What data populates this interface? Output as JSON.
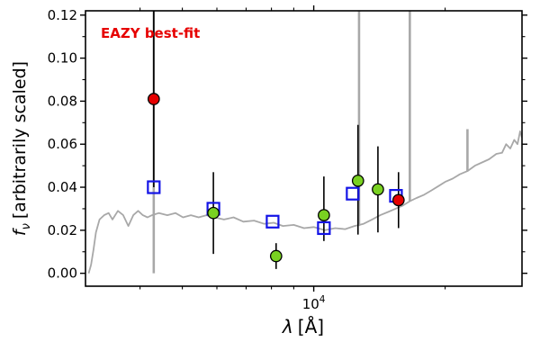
{
  "figure": {
    "annotation": "EAZY best-fit",
    "xlabel_symbol": "λ",
    "xlabel_unit": "[Å]",
    "ylabel_symbol": "f",
    "ylabel_sub": "ν",
    "ylabel_rest": "[arbitrarily scaled]"
  },
  "chart_data": {
    "type": "scatter",
    "title": "",
    "annotation": "EAZY best-fit",
    "xlabel": "λ [Å]",
    "ylabel": "f_ν [arbitrarily scaled]",
    "x_scale": "log",
    "xlim": [
      3000,
      30000
    ],
    "ylim": [
      -0.006,
      0.122
    ],
    "y_ticks": [
      0.0,
      0.02,
      0.04,
      0.06,
      0.08,
      0.1,
      0.12
    ],
    "y_tick_labels": [
      "0.00",
      "0.02",
      "0.04",
      "0.06",
      "0.08",
      "0.10",
      "0.12"
    ],
    "y_minor_ticks": [
      0.01,
      0.03,
      0.05,
      0.07,
      0.09,
      0.11
    ],
    "x_major_ticks": [
      10000
    ],
    "x_major_label": {
      "base": "10",
      "exp": "4"
    },
    "x_minor_ticks": [
      4000,
      5000,
      6000,
      7000,
      8000,
      9000,
      20000
    ],
    "grid": false,
    "legend": "none",
    "colors": {
      "spectrum": "#a8a8a8",
      "model_square": "#1414e6",
      "observed_red": "#e60000",
      "observed_green": "#79d121",
      "errorbar": "#000000",
      "annotation": "#e60000",
      "axes": "#000000"
    },
    "series": [
      {
        "name": "EAZY model photometry",
        "slug": "model-photometry-point",
        "marker": "open-square",
        "color": "#1414e6",
        "points": [
          [
            4300,
            0.04
          ],
          [
            5890,
            0.03
          ],
          [
            8050,
            0.024
          ],
          [
            10550,
            0.021
          ],
          [
            12280,
            0.037
          ],
          [
            15430,
            0.036
          ]
        ]
      },
      {
        "name": "observed photometry (red)",
        "slug": "observed-point-red",
        "marker": "circle",
        "color": "#e60000",
        "points": [
          [
            4300,
            0.081,
            0.041,
            0.045
          ],
          [
            15640,
            0.034,
            0.013,
            0.013
          ]
        ]
      },
      {
        "name": "observed photometry (green)",
        "slug": "observed-point-green",
        "marker": "circle",
        "color": "#79d121",
        "points": [
          [
            5890,
            0.028,
            0.019,
            0.019
          ],
          [
            8200,
            0.008,
            0.006,
            0.006
          ],
          [
            10550,
            0.027,
            0.012,
            0.018
          ],
          [
            12630,
            0.043,
            0.025,
            0.026
          ],
          [
            14030,
            0.039,
            0.02,
            0.02
          ]
        ]
      }
    ],
    "spectrum": {
      "name": "best-fit model spectrum",
      "color": "#a8a8a8",
      "points": [
        [
          3050,
          0.0
        ],
        [
          3090,
          0.004
        ],
        [
          3130,
          0.011
        ],
        [
          3170,
          0.019
        ],
        [
          3230,
          0.025
        ],
        [
          3310,
          0.027
        ],
        [
          3390,
          0.028
        ],
        [
          3460,
          0.025
        ],
        [
          3560,
          0.029
        ],
        [
          3660,
          0.027
        ],
        [
          3760,
          0.022
        ],
        [
          3860,
          0.027
        ],
        [
          3960,
          0.029
        ],
        [
          4060,
          0.027
        ],
        [
          4160,
          0.026
        ],
        [
          4260,
          0.027
        ],
        [
          4420,
          0.028
        ],
        [
          4620,
          0.027
        ],
        [
          4820,
          0.028
        ],
        [
          5020,
          0.026
        ],
        [
          5230,
          0.027
        ],
        [
          5450,
          0.026
        ],
        [
          5680,
          0.027
        ],
        [
          5920,
          0.026
        ],
        [
          6230,
          0.025
        ],
        [
          6550,
          0.026
        ],
        [
          6900,
          0.024
        ],
        [
          7300,
          0.0245
        ],
        [
          7700,
          0.023
        ],
        [
          8100,
          0.0235
        ],
        [
          8500,
          0.022
        ],
        [
          9000,
          0.0225
        ],
        [
          9500,
          0.021
        ],
        [
          10000,
          0.0215
        ],
        [
          10600,
          0.02
        ],
        [
          11200,
          0.021
        ],
        [
          11800,
          0.0205
        ],
        [
          12400,
          0.022
        ],
        [
          13000,
          0.023
        ],
        [
          13600,
          0.025
        ],
        [
          14200,
          0.027
        ],
        [
          14800,
          0.0285
        ],
        [
          15400,
          0.03
        ],
        [
          16000,
          0.0315
        ],
        [
          16600,
          0.0335
        ],
        [
          17200,
          0.035
        ],
        [
          17900,
          0.0365
        ],
        [
          18600,
          0.0385
        ],
        [
          19300,
          0.0405
        ],
        [
          20000,
          0.0425
        ],
        [
          20800,
          0.044
        ],
        [
          21600,
          0.046
        ],
        [
          22500,
          0.0475
        ],
        [
          23400,
          0.05
        ],
        [
          24300,
          0.0515
        ],
        [
          25200,
          0.053
        ],
        [
          26200,
          0.0555
        ],
        [
          27000,
          0.056
        ],
        [
          27600,
          0.06
        ],
        [
          28200,
          0.058
        ],
        [
          28800,
          0.062
        ],
        [
          29300,
          0.06
        ],
        [
          29700,
          0.066
        ],
        [
          30000,
          0.063
        ]
      ],
      "emission_lines": [
        [
          4300,
          0.0,
          0.135
        ],
        [
          12700,
          0.022,
          0.135
        ],
        [
          16600,
          0.0335,
          0.135
        ],
        [
          22500,
          0.0475,
          0.067
        ]
      ]
    }
  }
}
